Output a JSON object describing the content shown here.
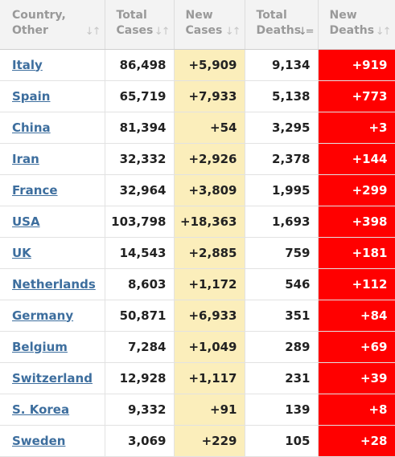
{
  "headers": {
    "country": [
      "Country,",
      "Other"
    ],
    "total_cases": [
      "Total",
      "Cases"
    ],
    "new_cases": [
      "New",
      "Cases"
    ],
    "total_deaths": [
      "Total",
      "Deaths"
    ],
    "new_deaths": [
      "New",
      "Deaths"
    ],
    "sort_glyph": "↓↑",
    "sort_active_glyph": "↓="
  },
  "colors": {
    "new_cases_bg": "#fbeebb",
    "new_deaths_bg": "#ff0000",
    "link": "#3d6e9e"
  },
  "rows": [
    {
      "country": "Italy",
      "total_cases": "86,498",
      "new_cases": "+5,909",
      "total_deaths": "9,134",
      "new_deaths": "+919"
    },
    {
      "country": "Spain",
      "total_cases": "65,719",
      "new_cases": "+7,933",
      "total_deaths": "5,138",
      "new_deaths": "+773"
    },
    {
      "country": "China",
      "total_cases": "81,394",
      "new_cases": "+54",
      "total_deaths": "3,295",
      "new_deaths": "+3"
    },
    {
      "country": "Iran",
      "total_cases": "32,332",
      "new_cases": "+2,926",
      "total_deaths": "2,378",
      "new_deaths": "+144"
    },
    {
      "country": "France",
      "total_cases": "32,964",
      "new_cases": "+3,809",
      "total_deaths": "1,995",
      "new_deaths": "+299"
    },
    {
      "country": "USA",
      "total_cases": "103,798",
      "new_cases": "+18,363",
      "total_deaths": "1,693",
      "new_deaths": "+398"
    },
    {
      "country": "UK",
      "total_cases": "14,543",
      "new_cases": "+2,885",
      "total_deaths": "759",
      "new_deaths": "+181"
    },
    {
      "country": "Netherlands",
      "total_cases": "8,603",
      "new_cases": "+1,172",
      "total_deaths": "546",
      "new_deaths": "+112"
    },
    {
      "country": "Germany",
      "total_cases": "50,871",
      "new_cases": "+6,933",
      "total_deaths": "351",
      "new_deaths": "+84"
    },
    {
      "country": "Belgium",
      "total_cases": "7,284",
      "new_cases": "+1,049",
      "total_deaths": "289",
      "new_deaths": "+69"
    },
    {
      "country": "Switzerland",
      "total_cases": "12,928",
      "new_cases": "+1,117",
      "total_deaths": "231",
      "new_deaths": "+39"
    },
    {
      "country": "S. Korea",
      "total_cases": "9,332",
      "new_cases": "+91",
      "total_deaths": "139",
      "new_deaths": "+8"
    },
    {
      "country": "Sweden",
      "total_cases": "3,069",
      "new_cases": "+229",
      "total_deaths": "105",
      "new_deaths": "+28"
    }
  ]
}
